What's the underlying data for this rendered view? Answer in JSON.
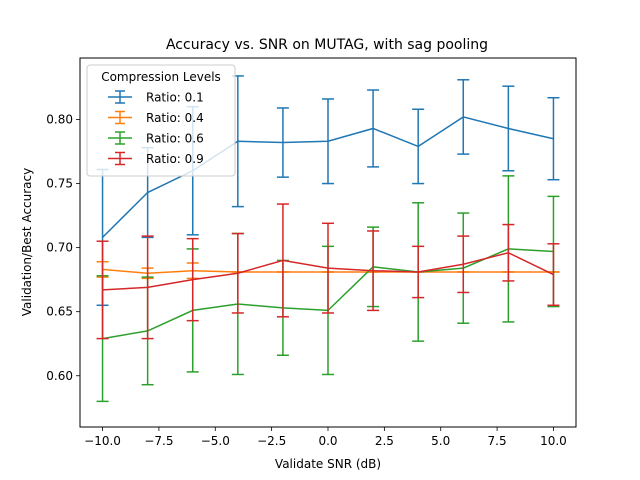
{
  "chart_data": {
    "type": "line",
    "title": "Accuracy vs. SNR on MUTAG, with sag pooling",
    "xlabel": "Validate SNR (dB)",
    "ylabel": "Validation/Best Accuracy",
    "xlim": [
      -11,
      11
    ],
    "ylim": [
      0.56,
      0.848
    ],
    "xticks": [
      -10,
      -7.5,
      -5,
      -2.5,
      0,
      2.5,
      5,
      7.5,
      10
    ],
    "xtick_labels": [
      "−10.0",
      "−7.5",
      "−5.0",
      "−2.5",
      "0.0",
      "2.5",
      "5.0",
      "7.5",
      "10.0"
    ],
    "yticks": [
      0.6,
      0.65,
      0.7,
      0.75,
      0.8
    ],
    "ytick_labels": [
      "0.60",
      "0.65",
      "0.70",
      "0.75",
      "0.80"
    ],
    "grid": false,
    "legend_title": "Compression Levels",
    "legend_position": "top-left",
    "x": [
      -10,
      -8,
      -6,
      -4,
      -2,
      0,
      2,
      4,
      6,
      8,
      10
    ],
    "series": [
      {
        "name": "Ratio: 0.1",
        "color": "#1f77b4",
        "values": [
          0.708,
          0.743,
          0.76,
          0.783,
          0.782,
          0.783,
          0.793,
          0.779,
          0.802,
          0.793,
          0.785
        ],
        "err": [
          0.053,
          0.035,
          0.05,
          0.051,
          0.027,
          0.033,
          0.03,
          0.029,
          0.029,
          0.033,
          0.032
        ]
      },
      {
        "name": "Ratio: 0.4",
        "color": "#ff7f0e",
        "values": [
          0.683,
          0.68,
          0.682,
          0.681,
          0.681,
          0.681,
          0.681,
          0.681,
          0.681,
          0.681,
          0.681
        ],
        "err": [
          0.006,
          0.004,
          0.006,
          0.0,
          0.0,
          0.0,
          0.0,
          0.0,
          0.0,
          0.0,
          0.0
        ]
      },
      {
        "name": "Ratio: 0.6",
        "color": "#2ca02c",
        "values": [
          0.629,
          0.635,
          0.651,
          0.656,
          0.653,
          0.651,
          0.685,
          0.681,
          0.684,
          0.699,
          0.697
        ],
        "err": [
          0.049,
          0.042,
          0.048,
          0.055,
          0.037,
          0.05,
          0.031,
          0.054,
          0.043,
          0.057,
          0.043
        ]
      },
      {
        "name": "Ratio: 0.9",
        "color": "#d62728",
        "values": [
          0.667,
          0.669,
          0.675,
          0.68,
          0.69,
          0.684,
          0.682,
          0.681,
          0.687,
          0.696,
          0.679
        ],
        "err": [
          0.038,
          0.04,
          0.032,
          0.031,
          0.044,
          0.035,
          0.031,
          0.02,
          0.022,
          0.022,
          0.024
        ]
      }
    ]
  }
}
